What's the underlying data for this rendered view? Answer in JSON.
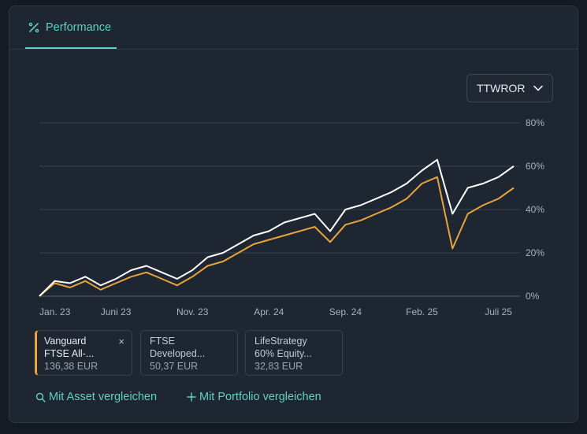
{
  "tab": {
    "label": "Performance",
    "icon": "percent-icon"
  },
  "select": {
    "value": "TTWROR",
    "icon": "chevron-down-icon"
  },
  "chart_data": {
    "type": "line",
    "x": [
      "Jan. 23",
      "Feb. 23",
      "März 23",
      "Apr. 23",
      "Mai 23",
      "Juni 23",
      "Juli 23",
      "Aug. 23",
      "Sep. 23",
      "Okt. 23",
      "Nov. 23",
      "Dez. 23",
      "Jan. 24",
      "Feb. 24",
      "März 24",
      "Apr. 24",
      "Mai 24",
      "Juni 24",
      "Juli 24",
      "Aug. 24",
      "Sep. 24",
      "Okt. 24",
      "Nov. 24",
      "Dez. 24",
      "Jan. 25",
      "Feb. 25",
      "März 25",
      "Apr. 25",
      "Mai 25",
      "Juni 25",
      "Juli 25",
      "Aug. 25"
    ],
    "xticks": [
      "Jan. 23",
      "Juni 23",
      "Nov. 23",
      "Apr. 24",
      "Sep. 24",
      "Feb. 25",
      "Juli 25"
    ],
    "yticks": [
      "80%",
      "60%",
      "40%",
      "20%",
      "0%"
    ],
    "ylim": [
      0,
      80
    ],
    "series": [
      {
        "color": "#ffffff",
        "values": [
          0,
          7,
          6,
          9,
          5,
          8,
          12,
          14,
          11,
          8,
          12,
          18,
          20,
          24,
          28,
          30,
          34,
          36,
          38,
          30,
          40,
          42,
          45,
          48,
          52,
          58,
          63,
          38,
          50,
          52,
          55,
          60
        ]
      },
      {
        "color": "#e8a33c",
        "values": [
          0,
          6,
          4,
          7,
          3,
          6,
          9,
          11,
          8,
          5,
          9,
          14,
          16,
          20,
          24,
          26,
          28,
          30,
          32,
          25,
          33,
          35,
          38,
          41,
          45,
          52,
          55,
          22,
          38,
          42,
          45,
          50
        ]
      }
    ]
  },
  "legend": [
    {
      "name": "Vanguard FTSE All-...",
      "line1": "Vanguard",
      "line2": "FTSE All-...",
      "value": "136,38 EUR",
      "close": "×"
    },
    {
      "name": "FTSE Developed...",
      "line1": "FTSE",
      "line2": "Developed...",
      "value": "50,37 EUR"
    },
    {
      "name": "LifeStrategy 60% Equity...",
      "line1": "LifeStrategy",
      "line2": "60% Equity...",
      "value": "32,83 EUR"
    }
  ],
  "actions": {
    "compare_asset": "Mit Asset vergleichen",
    "compare_portfolio": "Mit Portfolio vergleichen",
    "compare_asset_icon": "search-icon",
    "compare_portfolio_icon": "plus-icon"
  }
}
